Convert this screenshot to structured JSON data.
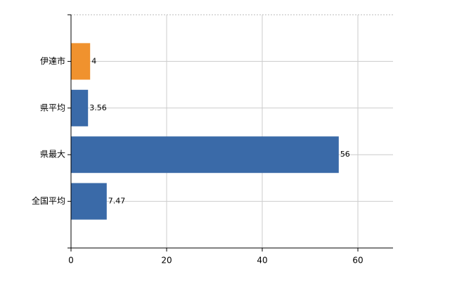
{
  "chart_data": {
    "type": "barh",
    "categories": [
      "伊達市",
      "県平均",
      "県最大",
      "全国平均"
    ],
    "values": [
      4,
      3.56,
      56,
      7.47
    ],
    "colors": [
      "#f0922e",
      "#3a6aa8",
      "#3a6aa8",
      "#3a6aa8"
    ],
    "xlim": [
      0,
      67.35
    ],
    "xticks": [
      0,
      20,
      40,
      60
    ],
    "grid": true
  }
}
